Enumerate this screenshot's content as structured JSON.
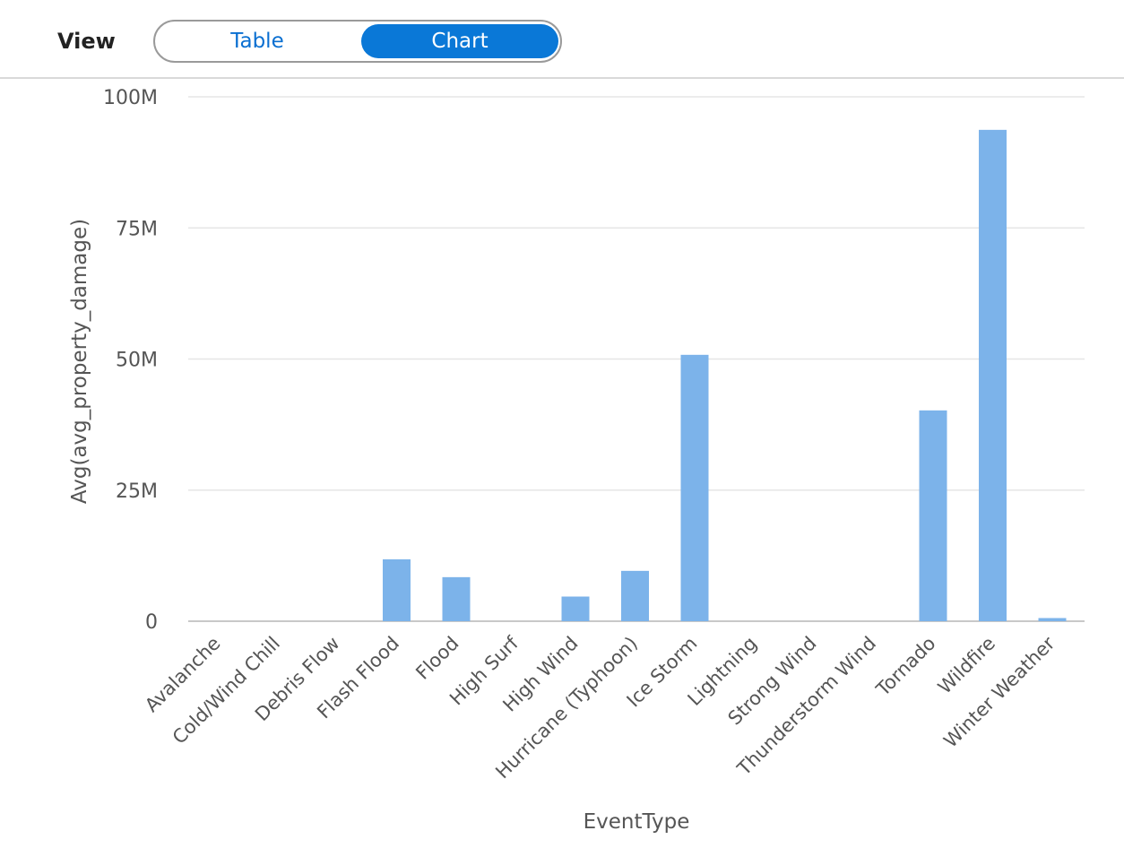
{
  "view": {
    "label": "View",
    "options": [
      "Table",
      "Chart"
    ],
    "selected": "Chart"
  },
  "colors": {
    "accent": "#0a78d7",
    "bar": "#7cb3ea",
    "grid": "#e6e6e6"
  },
  "chart_data": {
    "type": "bar",
    "xlabel": "EventType",
    "ylabel": "Avg(avg_property_damage)",
    "ylim": [
      0,
      100000000
    ],
    "yticks": [
      {
        "value": 0,
        "label": "0"
      },
      {
        "value": 25000000,
        "label": "25M"
      },
      {
        "value": 50000000,
        "label": "50M"
      },
      {
        "value": 75000000,
        "label": "75M"
      },
      {
        "value": 100000000,
        "label": "100M"
      }
    ],
    "grid": true,
    "categories": [
      "Avalanche",
      "Cold/Wind Chill",
      "Debris Flow",
      "Flash Flood",
      "Flood",
      "High Surf",
      "High Wind",
      "Hurricane (Typhoon)",
      "Ice Storm",
      "Lightning",
      "Strong Wind",
      "Thunderstorm Wind",
      "Tornado",
      "Wildfire",
      "Winter Weather"
    ],
    "values": [
      0,
      0,
      0,
      11800000,
      8400000,
      0,
      4700000,
      9600000,
      50800000,
      0,
      0,
      0,
      40200000,
      93700000,
      600000
    ]
  }
}
